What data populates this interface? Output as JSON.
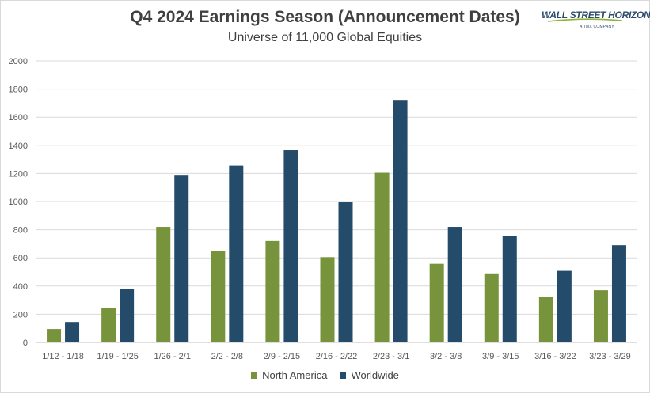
{
  "chart_data": {
    "type": "bar",
    "title": "Q4 2024 Earnings Season (Announcement Dates)",
    "subtitle": "Universe of 11,000 Global Equities",
    "categories": [
      "1/12 - 1/18",
      "1/19 - 1/25",
      "1/26 - 2/1",
      "2/2 - 2/8",
      "2/9 - 2/15",
      "2/16 - 2/22",
      "2/23 - 3/1",
      "3/2 - 3/8",
      "3/9 - 3/15",
      "3/16 - 3/22",
      "3/23 - 3/29"
    ],
    "series": [
      {
        "name": "North America",
        "color": "#77933c",
        "values": [
          95,
          245,
          820,
          648,
          720,
          605,
          1205,
          558,
          490,
          325,
          370
        ]
      },
      {
        "name": "Worldwide",
        "color": "#254b6b",
        "values": [
          145,
          378,
          1190,
          1255,
          1365,
          998,
          1718,
          820,
          755,
          508,
          690
        ]
      }
    ],
    "ylim": [
      0,
      2000
    ],
    "yticks": [
      0,
      200,
      400,
      600,
      800,
      1000,
      1200,
      1400,
      1600,
      1800,
      2000
    ],
    "grid": true,
    "legend_position": "bottom"
  },
  "logo": {
    "text": "WALL STREET HORIZON",
    "subtext": "A TMX COMPANY"
  }
}
